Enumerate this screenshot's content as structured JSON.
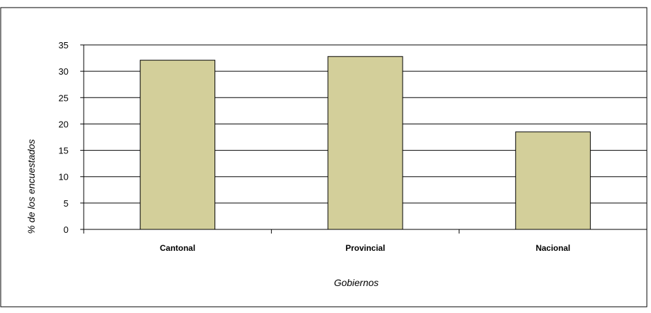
{
  "chart_data": {
    "type": "bar",
    "categories": [
      "Cantonal",
      "Provincial",
      "Nacional"
    ],
    "values": [
      32.1,
      32.8,
      18.5
    ],
    "xlabel": "Gobiernos",
    "ylabel": "% de los encuestados",
    "ylim": [
      0,
      35
    ],
    "yticks": [
      0,
      5,
      10,
      15,
      20,
      25,
      30,
      35
    ],
    "grid": true,
    "legend": "none",
    "colors": {
      "bar_fill": "#d3cf9a",
      "bar_stroke": "#000000",
      "grid": "#000000",
      "frame": "#000000",
      "background": "#ffffff"
    }
  }
}
